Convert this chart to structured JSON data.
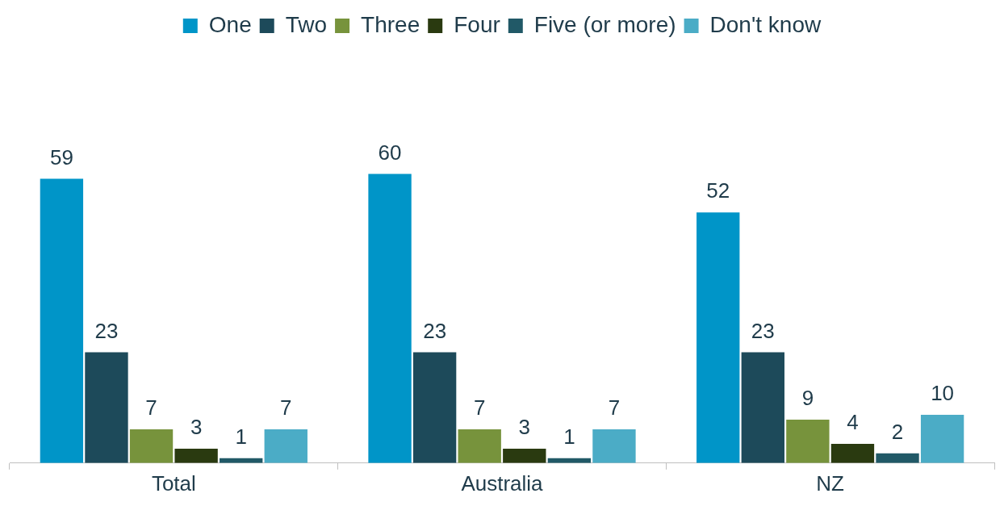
{
  "chart_data": {
    "type": "bar",
    "categories": [
      "Total",
      "Australia",
      "NZ"
    ],
    "series": [
      {
        "name": "One",
        "color": "#0095c8",
        "values": [
          59,
          60,
          52
        ]
      },
      {
        "name": "Two",
        "color": "#1d4a5a",
        "values": [
          23,
          23,
          23
        ]
      },
      {
        "name": "Three",
        "color": "#77933c",
        "values": [
          7,
          7,
          9
        ]
      },
      {
        "name": "Four",
        "color": "#2a3a10",
        "values": [
          3,
          3,
          4
        ]
      },
      {
        "name": "Five (or more)",
        "color": "#215967",
        "values": [
          1,
          1,
          2
        ]
      },
      {
        "name": "Don't know",
        "color": "#4bacc6",
        "values": [
          7,
          7,
          10
        ]
      }
    ],
    "data_labels": true,
    "legend": "top",
    "grid": false,
    "tick_labels": "x"
  }
}
